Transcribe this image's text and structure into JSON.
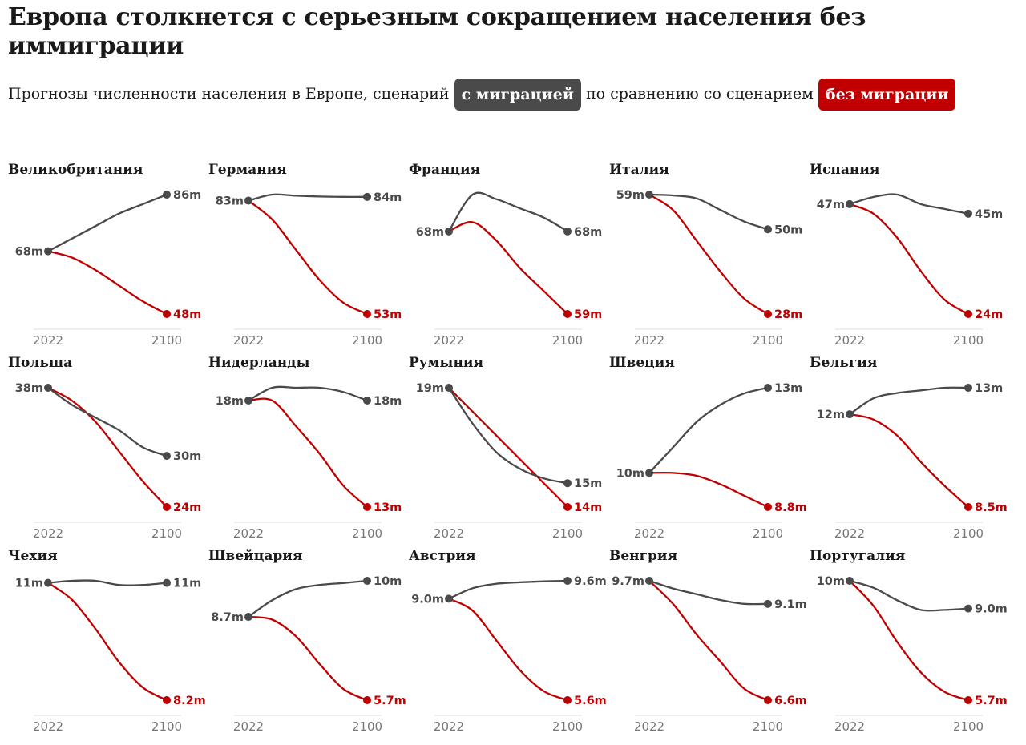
{
  "title": "Европа столкнется с серьезным сокращением населения без иммиграции",
  "subtitle": {
    "part1": "Прогнозы численности населения в Европе, сценарий",
    "with_label": "с миграцией",
    "part2": "по сравнению со сценарием",
    "without_label": "без миграции"
  },
  "colors": {
    "with": "#4a4a4a",
    "without": "#c00000",
    "axis": "#dddddd",
    "tick": "#777777"
  },
  "chart_data": {
    "type": "line",
    "x": [
      2022,
      2100
    ],
    "xlabels": [
      "2022",
      "2100"
    ],
    "unit": "million people",
    "series_names": [
      "с миграцией",
      "без миграции"
    ],
    "panels": [
      {
        "country": "Великобритания",
        "start": 68,
        "start_label": "68m",
        "with": [
          68,
          72,
          76,
          80,
          83,
          86
        ],
        "with_end_label": "86m",
        "without": [
          68,
          66,
          62,
          57,
          52,
          48
        ],
        "without_end_label": "48m"
      },
      {
        "country": "Германия",
        "start": 83,
        "start_label": "83m",
        "with": [
          83,
          84.6,
          84.3,
          84.1,
          84,
          84
        ],
        "with_end_label": "84m",
        "without": [
          83,
          78,
          70,
          62,
          56,
          53
        ],
        "without_end_label": "53m"
      },
      {
        "country": "Франция",
        "start": 68,
        "start_label": "68m",
        "with": [
          68,
          72,
          71.5,
          70.5,
          69.5,
          68
        ],
        "with_end_label": "68m",
        "without": [
          68,
          69,
          67,
          64,
          61.5,
          59
        ],
        "without_end_label": "59m"
      },
      {
        "country": "Италия",
        "start": 59,
        "start_label": "59m",
        "with": [
          59,
          58.8,
          58,
          55,
          52,
          50
        ],
        "with_end_label": "50m",
        "without": [
          59,
          55,
          47,
          39,
          32,
          28
        ],
        "without_end_label": "28m"
      },
      {
        "country": "Испания",
        "start": 47,
        "start_label": "47m",
        "with": [
          47,
          48.5,
          49,
          47,
          46,
          45
        ],
        "with_end_label": "45m",
        "without": [
          47,
          45,
          40,
          33,
          27,
          24
        ],
        "without_end_label": "24m"
      },
      {
        "country": "Польша",
        "start": 38,
        "start_label": "38m",
        "with": [
          38,
          36,
          34.5,
          33,
          31,
          30
        ],
        "with_end_label": "30m",
        "without": [
          38,
          36.5,
          34,
          30.5,
          27,
          24
        ],
        "without_end_label": "24m"
      },
      {
        "country": "Нидерланды",
        "start": 18,
        "start_label": "18m",
        "with": [
          18,
          18.6,
          18.6,
          18.6,
          18.4,
          18
        ],
        "with_end_label": "18m",
        "without": [
          18,
          18,
          16.8,
          15.5,
          14,
          13
        ],
        "without_end_label": "13m"
      },
      {
        "country": "Румыния",
        "start": 19,
        "start_label": "19m",
        "with": [
          19,
          17.5,
          16.3,
          15.6,
          15.2,
          15
        ],
        "with_end_label": "15m",
        "without": [
          19,
          18,
          17,
          16,
          15,
          14
        ],
        "without_end_label": "14m"
      },
      {
        "country": "Швеция",
        "start": 10,
        "start_label": "10m",
        "with": [
          10,
          10.9,
          11.8,
          12.4,
          12.8,
          13
        ],
        "with_end_label": "13m",
        "without": [
          10,
          10,
          9.9,
          9.6,
          9.2,
          8.8
        ],
        "without_end_label": "8.8m"
      },
      {
        "country": "Бельгия",
        "start": 12,
        "start_label": "12m",
        "with": [
          12,
          12.6,
          12.8,
          12.9,
          13,
          13
        ],
        "with_end_label": "13m",
        "without": [
          12,
          11.8,
          11.2,
          10.2,
          9.3,
          8.5
        ],
        "without_end_label": "8.5m"
      },
      {
        "country": "Чехия",
        "start": 11,
        "start_label": "11m",
        "with": [
          11,
          11.05,
          11.05,
          10.95,
          10.95,
          11
        ],
        "with_end_label": "11m",
        "without": [
          11,
          10.6,
          9.9,
          9.1,
          8.5,
          8.2
        ],
        "without_end_label": "8.2m"
      },
      {
        "country": "Швейцария",
        "start": 8.7,
        "start_label": "8.7m",
        "with": [
          8.7,
          9.3,
          9.7,
          9.85,
          9.92,
          10
        ],
        "with_end_label": "10m",
        "without": [
          8.7,
          8.6,
          8.0,
          7.0,
          6.1,
          5.7
        ],
        "without_end_label": "5.7m"
      },
      {
        "country": "Австрия",
        "start": 9.0,
        "start_label": "9.0m",
        "with": [
          9.0,
          9.35,
          9.5,
          9.55,
          9.58,
          9.6
        ],
        "with_end_label": "9.6m",
        "without": [
          9.0,
          8.6,
          7.6,
          6.6,
          5.9,
          5.6
        ],
        "without_end_label": "5.6m"
      },
      {
        "country": "Венгрия",
        "start": 9.7,
        "start_label": "9.7m",
        "with": [
          9.7,
          9.5,
          9.35,
          9.2,
          9.1,
          9.1
        ],
        "with_end_label": "9.1m",
        "without": [
          9.7,
          9.1,
          8.3,
          7.6,
          6.9,
          6.6
        ],
        "without_end_label": "6.6m"
      },
      {
        "country": "Португалия",
        "start": 10,
        "start_label": "10m",
        "with": [
          10,
          9.75,
          9.3,
          8.95,
          8.95,
          9.0
        ],
        "with_end_label": "9.0m",
        "without": [
          10,
          9.1,
          7.8,
          6.7,
          6.0,
          5.7
        ],
        "without_end_label": "5.7m"
      }
    ]
  }
}
